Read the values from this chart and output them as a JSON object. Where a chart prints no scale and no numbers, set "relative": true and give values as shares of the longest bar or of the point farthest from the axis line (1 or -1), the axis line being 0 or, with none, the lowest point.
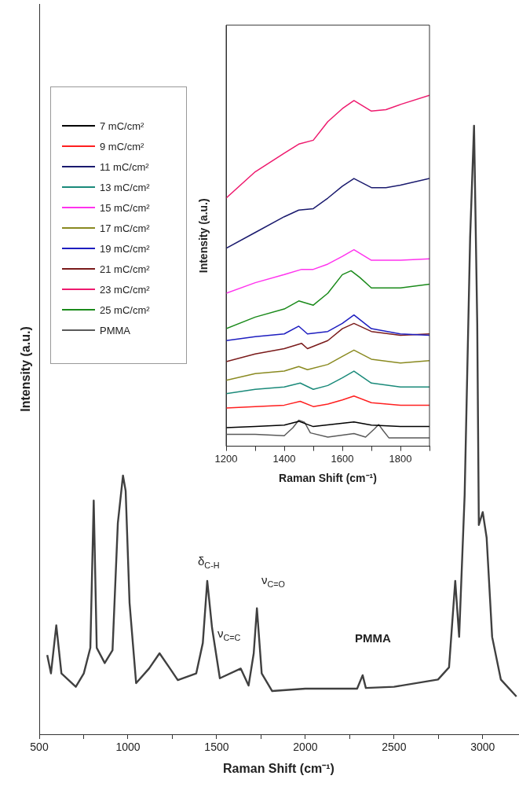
{
  "chart_data": [
    {
      "type": "line",
      "xlabel": "Raman Shift (cm⁻¹)",
      "ylabel": "Intensity (a.u.)",
      "relative": true,
      "legend": false,
      "xlim": [
        500,
        3200
      ],
      "xticks": [
        500,
        {
          "value": 750,
          "label": null
        },
        1000,
        {
          "value": 1250,
          "label": null
        },
        1500,
        {
          "value": 1750,
          "label": null
        },
        2000,
        {
          "value": 2250,
          "label": null
        },
        2500,
        {
          "value": 2750,
          "label": null
        },
        3000
      ],
      "annotations": [
        "δ$_{C-H}$",
        "ν$_{C=C}$",
        "ν$_{C=O}$",
        "PMMA"
      ],
      "series": [
        {
          "color": "#404040",
          "x": [
            545,
            566,
            596,
            625,
            706,
            751,
            788,
            807,
            824,
            869,
            913,
            943,
            972,
            987,
            1009,
            1046,
            1119,
            1178,
            1237,
            1281,
            1385,
            1422,
            1447,
            1474,
            1518,
            1636,
            1680,
            1709,
            1727,
            1754,
            1813,
            2000,
            2292,
            2323,
            2341,
            2500,
            2748,
            2810,
            2845,
            2867,
            2898,
            2929,
            2951,
            2969,
            2978,
            3000,
            3022,
            3053,
            3102,
            3190
          ],
          "values": [
            0.13,
            0.1,
            0.179,
            0.1,
            0.078,
            0.1,
            0.142,
            0.384,
            0.142,
            0.117,
            0.138,
            0.347,
            0.425,
            0.4,
            0.216,
            0.084,
            0.108,
            0.133,
            0.108,
            0.089,
            0.1,
            0.15,
            0.252,
            0.175,
            0.092,
            0.108,
            0.08,
            0.133,
            0.207,
            0.1,
            0.071,
            0.075,
            0.075,
            0.097,
            0.076,
            0.078,
            0.09,
            0.11,
            0.252,
            0.16,
            0.393,
            0.817,
            1,
            0.675,
            0.344,
            0.365,
            0.323,
            0.16,
            0.09,
            0.062
          ]
        }
      ]
    },
    {
      "type": "line",
      "xlabel": "Raman Shift (cm⁻¹)",
      "ylabel": "Intensity (a.u.)",
      "relative": true,
      "legend": "left",
      "xlim": [
        1200,
        1900
      ],
      "xticks": [
        1200,
        {
          "value": 1300,
          "label": null
        },
        1400,
        {
          "value": 1500,
          "label": null
        },
        1600,
        {
          "value": 1700,
          "label": null
        },
        1800,
        {
          "value": 1900,
          "label": null
        }
      ],
      "series": [
        {
          "name": "7 mC/cm²",
          "color": "#000000",
          "x": [
            1200,
            1300,
            1400,
            1450,
            1500,
            1640,
            1700,
            1800,
            1900
          ],
          "values": [
            0.053,
            0.056,
            0.06,
            0.071,
            0.056,
            0.069,
            0.06,
            0.056,
            0.056
          ]
        },
        {
          "name": "9 mC/cm²",
          "color": "#ff2020",
          "x": [
            1200,
            1300,
            1400,
            1455,
            1500,
            1550,
            1600,
            1640,
            1700,
            1800,
            1900
          ],
          "values": [
            0.109,
            0.113,
            0.117,
            0.128,
            0.113,
            0.12,
            0.132,
            0.143,
            0.124,
            0.117,
            0.117
          ]
        },
        {
          "name": "11 mC/cm²",
          "color": "#1a1a6e",
          "x": [
            1200,
            1300,
            1400,
            1450,
            1500,
            1550,
            1600,
            1640,
            1700,
            1750,
            1800,
            1900
          ],
          "values": [
            0.564,
            0.609,
            0.654,
            0.673,
            0.677,
            0.707,
            0.741,
            0.763,
            0.737,
            0.737,
            0.744,
            0.763
          ]
        },
        {
          "name": "13 mC/cm²",
          "color": "#1a8a7a",
          "x": [
            1200,
            1300,
            1400,
            1455,
            1500,
            1550,
            1600,
            1640,
            1700,
            1800,
            1900
          ],
          "values": [
            0.15,
            0.162,
            0.169,
            0.18,
            0.162,
            0.173,
            0.195,
            0.214,
            0.18,
            0.169,
            0.169
          ]
        },
        {
          "name": "15 mC/cm²",
          "color": "#ff33ee",
          "x": [
            1200,
            1300,
            1400,
            1460,
            1500,
            1550,
            1600,
            1640,
            1700,
            1800,
            1900
          ],
          "values": [
            0.436,
            0.466,
            0.489,
            0.504,
            0.504,
            0.519,
            0.541,
            0.56,
            0.53,
            0.53,
            0.534
          ]
        },
        {
          "name": "17 mC/cm²",
          "color": "#8a8a20",
          "x": [
            1200,
            1300,
            1400,
            1450,
            1480,
            1550,
            1600,
            1640,
            1700,
            1800,
            1900
          ],
          "values": [
            0.188,
            0.207,
            0.214,
            0.227,
            0.218,
            0.233,
            0.256,
            0.274,
            0.248,
            0.237,
            0.244
          ]
        },
        {
          "name": "19 mC/cm²",
          "color": "#1e1ec0",
          "x": [
            1200,
            1300,
            1400,
            1450,
            1480,
            1550,
            1600,
            1640,
            1700,
            1800,
            1900
          ],
          "values": [
            0.301,
            0.312,
            0.32,
            0.342,
            0.32,
            0.327,
            0.35,
            0.374,
            0.335,
            0.32,
            0.316
          ]
        },
        {
          "name": "21 mC/cm²",
          "color": "#7a1a1a",
          "x": [
            1200,
            1300,
            1400,
            1460,
            1480,
            1550,
            1600,
            1640,
            1700,
            1800,
            1900
          ],
          "values": [
            0.241,
            0.263,
            0.278,
            0.293,
            0.278,
            0.301,
            0.335,
            0.35,
            0.327,
            0.316,
            0.32
          ]
        },
        {
          "name": "23 mC/cm²",
          "color": "#ee1a6e",
          "x": [
            1200,
            1300,
            1400,
            1450,
            1500,
            1550,
            1600,
            1640,
            1700,
            1750,
            1800,
            1900
          ],
          "values": [
            0.707,
            0.782,
            0.835,
            0.861,
            0.872,
            0.925,
            0.962,
            0.985,
            0.955,
            0.959,
            0.974,
            1
          ]
        },
        {
          "name": "25 mC/cm²",
          "color": "#1a8a1a",
          "x": [
            1200,
            1300,
            1400,
            1450,
            1500,
            1550,
            1600,
            1630,
            1660,
            1700,
            1800,
            1900
          ],
          "values": [
            0.335,
            0.368,
            0.391,
            0.414,
            0.402,
            0.436,
            0.489,
            0.5,
            0.481,
            0.451,
            0.451,
            0.462
          ]
        },
        {
          "name": "PMMA",
          "color": "#5a5a5a",
          "x": [
            1200,
            1300,
            1400,
            1430,
            1450,
            1470,
            1490,
            1550,
            1640,
            1680,
            1710,
            1725,
            1740,
            1760,
            1900
          ],
          "values": [
            0.034,
            0.034,
            0.03,
            0.053,
            0.074,
            0.068,
            0.038,
            0.026,
            0.036,
            0.026,
            0.049,
            0.062,
            0.045,
            0.024,
            0.024
          ]
        }
      ]
    }
  ]
}
